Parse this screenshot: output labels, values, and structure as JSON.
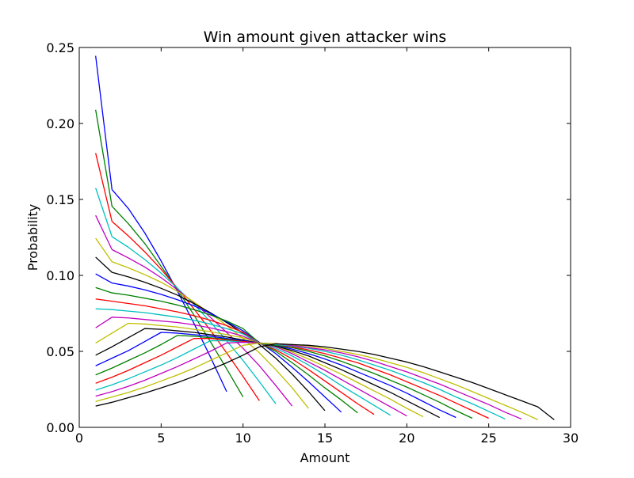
{
  "chart_data": {
    "type": "line",
    "title": "Win amount given attacker wins",
    "xlabel": "Amount",
    "ylabel": "Probability",
    "xlim": [
      0,
      30
    ],
    "ylim": [
      0,
      0.25
    ],
    "xticks": [
      0,
      5,
      10,
      15,
      20,
      25,
      30
    ],
    "yticks": [
      0.0,
      0.05,
      0.1,
      0.15,
      0.2,
      0.25
    ],
    "xtick_labels": [
      "0",
      "5",
      "10",
      "15",
      "20",
      "25",
      "30"
    ],
    "ytick_labels": [
      "0.00",
      "0.05",
      "0.10",
      "0.15",
      "0.20",
      "0.25"
    ],
    "grid": false,
    "legend": "none",
    "series": [
      {
        "color": "#0000ff",
        "x": [
          1,
          2,
          3,
          4,
          5,
          6,
          7,
          8,
          9
        ],
        "y": [
          0.2445,
          0.1565,
          0.144,
          0.128,
          0.1095,
          0.0895,
          0.0685,
          0.0465,
          0.0235
        ]
      },
      {
        "color": "#008000",
        "x": [
          1,
          2,
          3,
          4,
          5,
          6,
          7,
          8,
          9,
          10
        ],
        "y": [
          0.209,
          0.1455,
          0.134,
          0.121,
          0.106,
          0.0905,
          0.074,
          0.0565,
          0.0385,
          0.02
        ]
      },
      {
        "color": "#ff0000",
        "x": [
          1,
          2,
          3,
          4,
          5,
          6,
          7,
          8,
          9,
          10,
          11
        ],
        "y": [
          0.1805,
          0.1355,
          0.126,
          0.1155,
          0.104,
          0.0915,
          0.078,
          0.064,
          0.049,
          0.0335,
          0.0175
        ]
      },
      {
        "color": "#00bfbf",
        "x": [
          1,
          2,
          3,
          4,
          5,
          6,
          7,
          8,
          9,
          10,
          11,
          12
        ],
        "y": [
          0.1575,
          0.1255,
          0.1185,
          0.1105,
          0.1015,
          0.0915,
          0.081,
          0.0695,
          0.057,
          0.044,
          0.03,
          0.0155
        ]
      },
      {
        "color": "#bf00bf",
        "x": [
          1,
          2,
          3,
          4,
          5,
          6,
          7,
          8,
          9,
          10,
          11,
          12,
          13
        ],
        "y": [
          0.1395,
          0.117,
          0.1115,
          0.1055,
          0.0985,
          0.0905,
          0.082,
          0.0725,
          0.0625,
          0.052,
          0.0405,
          0.0275,
          0.014
        ]
      },
      {
        "color": "#bfbf00",
        "x": [
          1,
          2,
          3,
          4,
          5,
          6,
          7,
          8,
          9,
          10,
          11,
          12,
          13,
          14
        ],
        "y": [
          0.1245,
          0.109,
          0.105,
          0.1005,
          0.0955,
          0.0895,
          0.0825,
          0.075,
          0.067,
          0.0585,
          0.049,
          0.038,
          0.026,
          0.0125
        ]
      },
      {
        "color": "#000000",
        "x": [
          1,
          2,
          3,
          4,
          5,
          6,
          7,
          8,
          9,
          10,
          11,
          12,
          13,
          14,
          15
        ],
        "y": [
          0.112,
          0.102,
          0.099,
          0.0955,
          0.0915,
          0.087,
          0.0815,
          0.0755,
          0.069,
          0.062,
          0.0545,
          0.0455,
          0.035,
          0.0235,
          0.011
        ]
      },
      {
        "color": "#0000ff",
        "x": [
          1,
          2,
          3,
          4,
          5,
          6,
          7,
          8,
          9,
          10,
          11,
          12,
          13,
          14,
          15,
          16
        ],
        "y": [
          0.101,
          0.095,
          0.093,
          0.0905,
          0.0875,
          0.084,
          0.08,
          0.075,
          0.0695,
          0.0635,
          0.056,
          0.0485,
          0.0395,
          0.03,
          0.02,
          0.01
        ]
      },
      {
        "color": "#008000",
        "x": [
          1,
          2,
          3,
          4,
          5,
          6,
          7,
          8,
          9,
          10,
          11,
          12,
          13,
          14,
          15,
          16,
          17
        ],
        "y": [
          0.092,
          0.0885,
          0.087,
          0.085,
          0.083,
          0.0805,
          0.0775,
          0.074,
          0.07,
          0.065,
          0.0555,
          0.05,
          0.0425,
          0.0345,
          0.026,
          0.018,
          0.0095
        ]
      },
      {
        "color": "#ff0000",
        "x": [
          1,
          2,
          3,
          4,
          5,
          6,
          7,
          8,
          9,
          10,
          11,
          12,
          13,
          14,
          15,
          16,
          17,
          18
        ],
        "y": [
          0.0845,
          0.083,
          0.0815,
          0.08,
          0.078,
          0.076,
          0.0735,
          0.0705,
          0.067,
          0.0625,
          0.0555,
          0.051,
          0.045,
          0.038,
          0.0305,
          0.023,
          0.0155,
          0.0085
        ]
      },
      {
        "color": "#00bfbf",
        "x": [
          1,
          2,
          3,
          4,
          5,
          6,
          7,
          8,
          9,
          10,
          11,
          12,
          13,
          14,
          15,
          16,
          17,
          18,
          19
        ],
        "y": [
          0.078,
          0.0775,
          0.0765,
          0.0755,
          0.074,
          0.0725,
          0.0705,
          0.068,
          0.065,
          0.0615,
          0.0555,
          0.052,
          0.047,
          0.041,
          0.0345,
          0.0275,
          0.021,
          0.0145,
          0.008
        ]
      },
      {
        "color": "#bf00bf",
        "x": [
          1,
          2,
          3,
          4,
          5,
          6,
          7,
          8,
          9,
          10,
          11,
          12,
          13,
          14,
          15,
          16,
          17,
          18,
          19,
          20
        ],
        "y": [
          0.0655,
          0.0725,
          0.072,
          0.071,
          0.07,
          0.069,
          0.0675,
          0.0655,
          0.063,
          0.06,
          0.0555,
          0.053,
          0.0485,
          0.043,
          0.0375,
          0.0315,
          0.0255,
          0.0195,
          0.0135,
          0.0075
        ]
      },
      {
        "color": "#bfbf00",
        "x": [
          1,
          2,
          3,
          4,
          5,
          6,
          7,
          8,
          9,
          10,
          11,
          12,
          13,
          14,
          15,
          16,
          17,
          18,
          19,
          20,
          21
        ],
        "y": [
          0.0555,
          0.062,
          0.0685,
          0.068,
          0.067,
          0.066,
          0.0645,
          0.063,
          0.061,
          0.059,
          0.0555,
          0.0535,
          0.0495,
          0.045,
          0.04,
          0.035,
          0.0295,
          0.024,
          0.0185,
          0.0125,
          0.007
        ]
      },
      {
        "color": "#000000",
        "x": [
          1,
          2,
          3,
          4,
          5,
          6,
          7,
          8,
          9,
          10,
          11,
          12,
          13,
          14,
          15,
          16,
          17,
          18,
          19,
          20,
          21,
          22
        ],
        "y": [
          0.0475,
          0.053,
          0.059,
          0.065,
          0.0645,
          0.0635,
          0.0625,
          0.061,
          0.0595,
          0.0575,
          0.0555,
          0.0535,
          0.0505,
          0.047,
          0.0425,
          0.038,
          0.033,
          0.028,
          0.023,
          0.0175,
          0.012,
          0.0065
        ]
      },
      {
        "color": "#0000ff",
        "x": [
          1,
          2,
          3,
          4,
          5,
          6,
          7,
          8,
          9,
          10,
          11,
          12,
          13,
          14,
          15,
          16,
          17,
          18,
          19,
          20,
          21,
          22,
          23
        ],
        "y": [
          0.0405,
          0.0455,
          0.0505,
          0.0565,
          0.0625,
          0.062,
          0.061,
          0.06,
          0.0585,
          0.057,
          0.0555,
          0.054,
          0.0515,
          0.0485,
          0.045,
          0.041,
          0.0365,
          0.032,
          0.0275,
          0.0225,
          0.017,
          0.0115,
          0.0065
        ]
      },
      {
        "color": "#008000",
        "x": [
          1,
          2,
          3,
          4,
          5,
          6,
          7,
          8,
          9,
          10,
          11,
          12,
          13,
          14,
          15,
          16,
          17,
          18,
          19,
          20,
          21,
          22,
          23,
          24
        ],
        "y": [
          0.0345,
          0.039,
          0.044,
          0.049,
          0.0545,
          0.0605,
          0.06,
          0.059,
          0.058,
          0.0565,
          0.0555,
          0.054,
          0.0525,
          0.05,
          0.047,
          0.0435,
          0.0395,
          0.0355,
          0.031,
          0.0265,
          0.0215,
          0.0165,
          0.011,
          0.006
        ]
      },
      {
        "color": "#ff0000",
        "x": [
          1,
          2,
          3,
          4,
          5,
          6,
          7,
          8,
          9,
          10,
          11,
          12,
          13,
          14,
          15,
          16,
          17,
          18,
          19,
          20,
          21,
          22,
          23,
          24,
          25
        ],
        "y": [
          0.029,
          0.033,
          0.0375,
          0.0425,
          0.0475,
          0.053,
          0.0585,
          0.0585,
          0.0575,
          0.0565,
          0.0555,
          0.0545,
          0.053,
          0.051,
          0.0485,
          0.0455,
          0.0425,
          0.0385,
          0.0345,
          0.03,
          0.0255,
          0.021,
          0.016,
          0.011,
          0.006
        ]
      },
      {
        "color": "#00bfbf",
        "x": [
          1,
          2,
          3,
          4,
          5,
          6,
          7,
          8,
          9,
          10,
          11,
          12,
          13,
          14,
          15,
          16,
          17,
          18,
          19,
          20,
          21,
          22,
          23,
          24,
          25,
          26
        ],
        "y": [
          0.0245,
          0.028,
          0.032,
          0.0365,
          0.041,
          0.046,
          0.0515,
          0.057,
          0.057,
          0.056,
          0.0555,
          0.0545,
          0.0535,
          0.052,
          0.05,
          0.0475,
          0.0445,
          0.041,
          0.0375,
          0.0335,
          0.0295,
          0.025,
          0.02,
          0.0155,
          0.0105,
          0.0055
        ]
      },
      {
        "color": "#bf00bf",
        "x": [
          1,
          2,
          3,
          4,
          5,
          6,
          7,
          8,
          9,
          10,
          11,
          12,
          13,
          14,
          15,
          16,
          17,
          18,
          19,
          20,
          21,
          22,
          23,
          24,
          25,
          26,
          27
        ],
        "y": [
          0.0205,
          0.0235,
          0.027,
          0.031,
          0.0355,
          0.04,
          0.045,
          0.05,
          0.0555,
          0.056,
          0.0555,
          0.055,
          0.054,
          0.0525,
          0.051,
          0.049,
          0.0465,
          0.0435,
          0.04,
          0.0365,
          0.0325,
          0.0285,
          0.024,
          0.0195,
          0.015,
          0.01,
          0.0055
        ]
      },
      {
        "color": "#bfbf00",
        "x": [
          1,
          2,
          3,
          4,
          5,
          6,
          7,
          8,
          9,
          10,
          11,
          12,
          13,
          14,
          15,
          16,
          17,
          18,
          19,
          20,
          21,
          22,
          23,
          24,
          25,
          26,
          27,
          28
        ],
        "y": [
          0.017,
          0.02,
          0.023,
          0.0265,
          0.0305,
          0.0345,
          0.039,
          0.044,
          0.049,
          0.054,
          0.0555,
          0.055,
          0.0545,
          0.0535,
          0.052,
          0.05,
          0.048,
          0.0455,
          0.0425,
          0.0395,
          0.036,
          0.032,
          0.028,
          0.0235,
          0.019,
          0.0145,
          0.01,
          0.005
        ]
      },
      {
        "color": "#000000",
        "x": [
          1,
          2,
          3,
          4,
          5,
          6,
          7,
          8,
          9,
          10,
          11,
          12,
          13,
          14,
          15,
          16,
          17,
          18,
          19,
          20,
          21,
          22,
          23,
          24,
          25,
          26,
          27,
          28,
          29
        ],
        "y": [
          0.014,
          0.0165,
          0.0195,
          0.0225,
          0.026,
          0.0295,
          0.0335,
          0.038,
          0.0425,
          0.0475,
          0.053,
          0.055,
          0.0545,
          0.054,
          0.053,
          0.0515,
          0.05,
          0.048,
          0.0455,
          0.043,
          0.04,
          0.0365,
          0.033,
          0.0295,
          0.0255,
          0.0215,
          0.0175,
          0.0135,
          0.005
        ]
      }
    ]
  }
}
